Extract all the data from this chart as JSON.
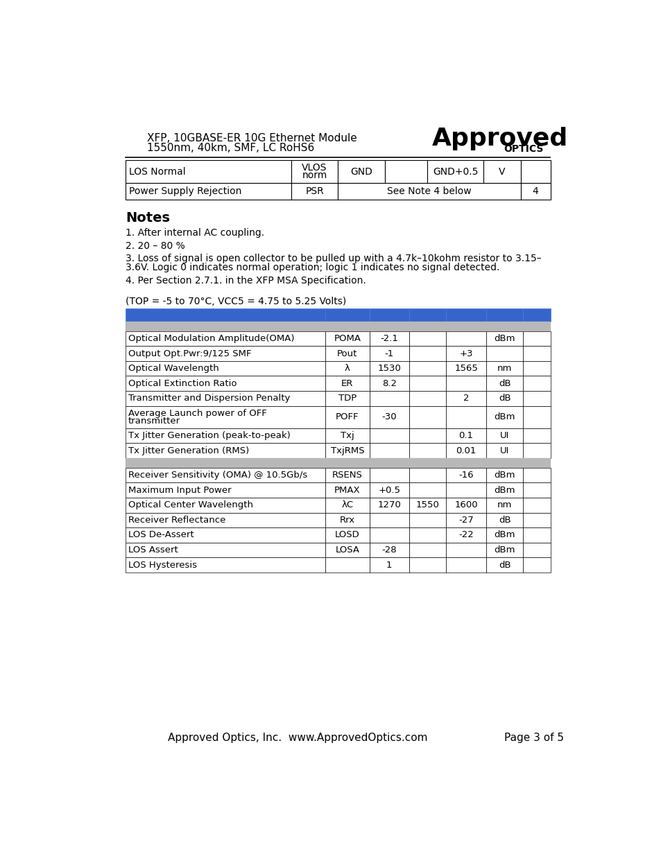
{
  "page_bg": "#ffffff",
  "header_text_line1": "XFP, 10GBASE-ER 10G Ethernet Module",
  "header_text_line2": "1550nm, 40km, SMF, LC RoHS6",
  "header_font_size": 11,
  "notes_title": "Notes",
  "notes_line1": "1. After internal AC coupling.",
  "notes_line2": "2. 20 – 80 %",
  "notes_line3a": "3. Loss of signal is open collector to be pulled up with a 4.7k–10kohm resistor to 3.15–",
  "notes_line3b": "3.6V. Logic 0 indicates normal operation; logic 1 indicates no signal detected.",
  "notes_line4": "4. Per Section 2.7.1. in the XFP MSA Specification.",
  "condition_text": "(TOP = -5 to 70°C, VCC5 = 4.75 to 5.25 Volts)",
  "blue_header_color": "#3565cc",
  "gray_section_color": "#b8b8b8",
  "transmitter_rows": [
    [
      "Optical Modulation Amplitude(OMA)",
      "POMA",
      "-2.1",
      "",
      "",
      "dBm",
      ""
    ],
    [
      "Output Opt.Pwr:9/125 SMF",
      "Pout",
      "-1",
      "",
      "+3",
      "",
      ""
    ],
    [
      "Optical Wavelength",
      "λ",
      "1530",
      "",
      "1565",
      "nm",
      ""
    ],
    [
      "Optical Extinction Ratio",
      "ER",
      "8.2",
      "",
      "",
      "dB",
      ""
    ],
    [
      "Transmitter and Dispersion Penalty",
      "TDP",
      "",
      "",
      "2",
      "dB",
      ""
    ],
    [
      "Average Launch power of OFF\ntransmitter",
      "POFF",
      "-30",
      "",
      "",
      "dBm",
      ""
    ],
    [
      "Tx Jitter Generation (peak-to-peak)",
      "Txj",
      "",
      "",
      "0.1",
      "UI",
      ""
    ],
    [
      "Tx Jitter Generation (RMS)",
      "TxjRMS",
      "",
      "",
      "0.01",
      "UI",
      ""
    ]
  ],
  "receiver_rows": [
    [
      "Receiver Sensitivity (OMA) @ 10.5Gb/s",
      "RSENS",
      "",
      "",
      "-16",
      "dBm",
      ""
    ],
    [
      "Maximum Input Power",
      "PMAX",
      "+0.5",
      "",
      "",
      "dBm",
      ""
    ],
    [
      "Optical Center Wavelength",
      "λC",
      "1270",
      "1550",
      "1600",
      "nm",
      ""
    ],
    [
      "Receiver Reflectance",
      "Rrx",
      "",
      "",
      "-27",
      "dB",
      ""
    ],
    [
      "LOS De-Assert",
      "LOSD",
      "",
      "",
      "-22",
      "dBm",
      ""
    ],
    [
      "LOS Assert",
      "LOSA",
      "-28",
      "",
      "",
      "dBm",
      ""
    ],
    [
      "LOS Hysteresis",
      "",
      "1",
      "",
      "",
      "dB",
      ""
    ]
  ],
  "footer_left": "Approved Optics, Inc.  www.ApprovedOptics.com",
  "footer_right": "Page 3 of 5"
}
